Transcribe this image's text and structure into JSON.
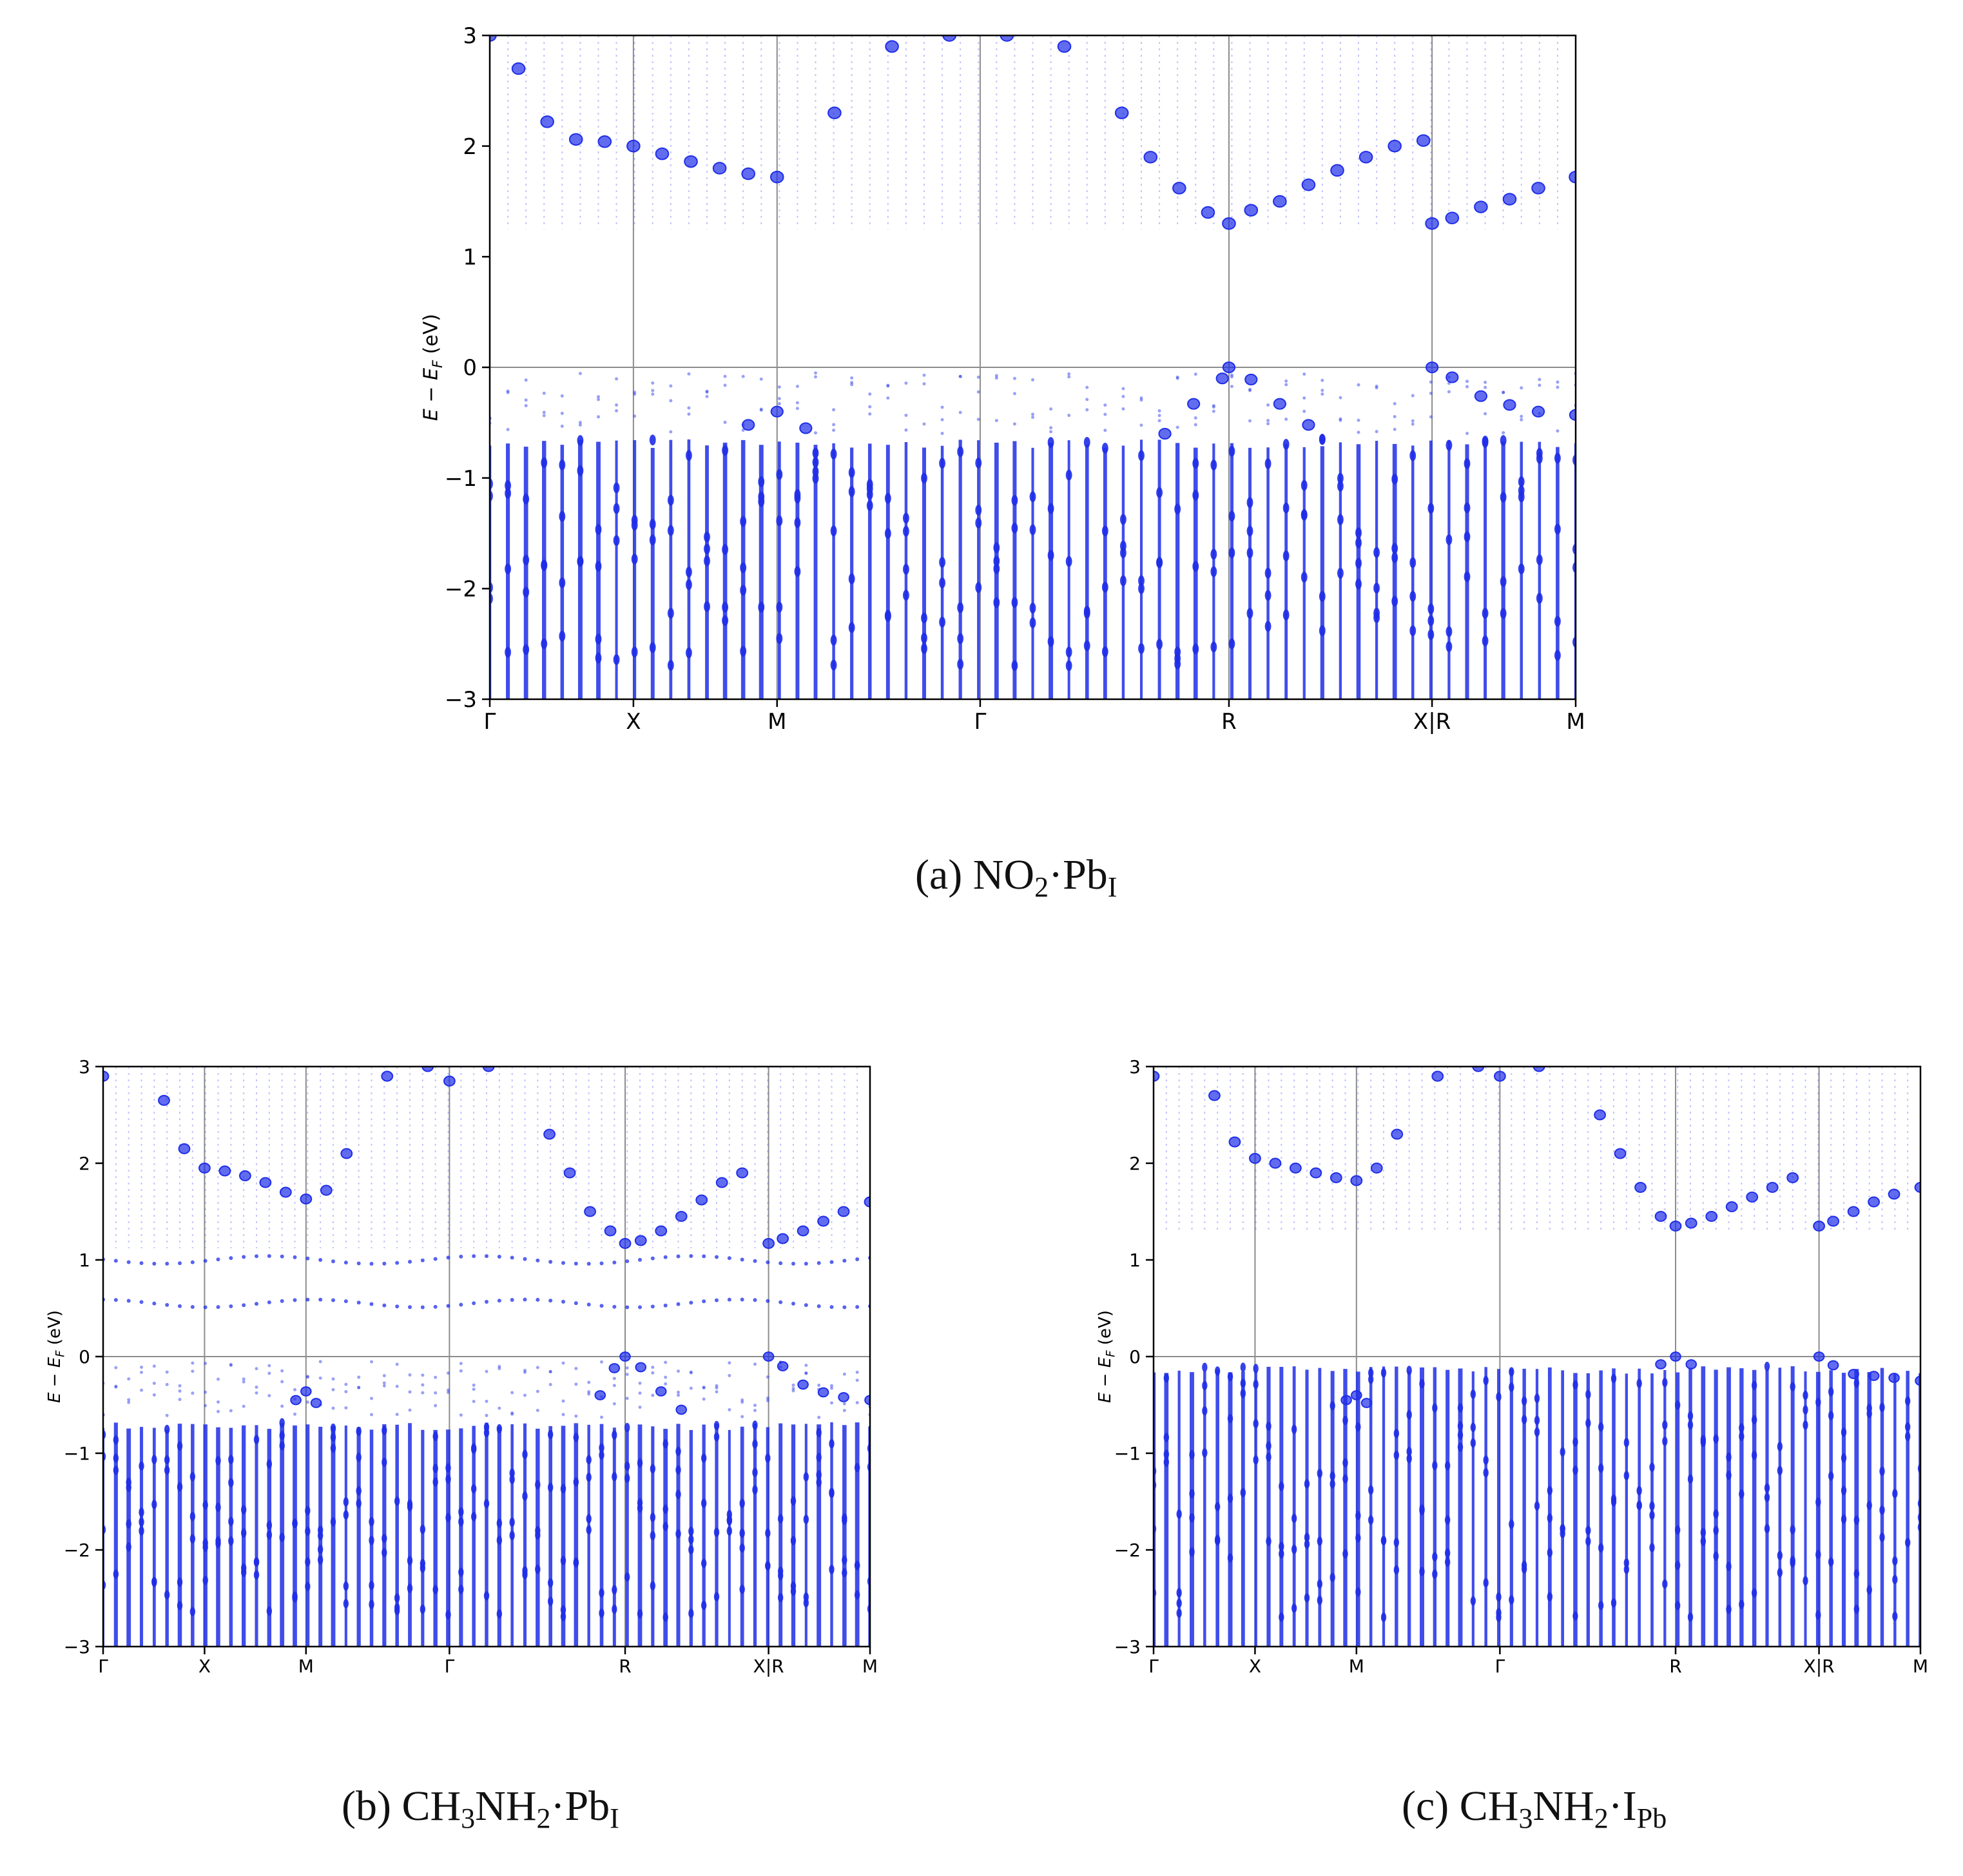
{
  "figure": {
    "captions": [
      {
        "label": "(a)",
        "parts": [
          [
            "NO",
            ""
          ],
          [
            "2",
            "sub"
          ],
          [
            "·Pb",
            ""
          ],
          [
            "I",
            "sub"
          ]
        ]
      },
      {
        "label": "(b)",
        "parts": [
          [
            "CH",
            ""
          ],
          [
            "3",
            "sub"
          ],
          [
            "NH",
            ""
          ],
          [
            "2",
            "sub"
          ],
          [
            "·Pb",
            ""
          ],
          [
            "I",
            "sub"
          ]
        ]
      },
      {
        "label": "(c)",
        "parts": [
          [
            "CH",
            ""
          ],
          [
            "3",
            "sub"
          ],
          [
            "NH",
            ""
          ],
          [
            "2",
            "sub"
          ],
          [
            "·I",
            ""
          ],
          [
            "Pb",
            "sub"
          ]
        ]
      }
    ]
  },
  "style": {
    "band_color": "#1f2ee8",
    "axis_color": "#000000",
    "gridline_color": "#8c8c8c"
  },
  "chart_data": [
    {
      "id": "a",
      "type": "scatter",
      "title": "",
      "xlabel": "",
      "ylabel": "E − E_F (eV)",
      "ylim": [
        -3,
        3
      ],
      "yticks": [
        -3,
        -2,
        -1,
        0,
        1,
        2,
        3
      ],
      "kpath_labels": [
        "Γ",
        "X",
        "M",
        "Γ",
        "R",
        "X|R",
        "M"
      ],
      "kpath_positions": [
        0,
        0.5,
        1.0,
        1.707,
        2.573,
        3.28,
        3.78
      ],
      "n_kpoints": 61,
      "cbm_eV": 1.3,
      "vbm_eV": 0.0,
      "defect_levels_eV": [],
      "conduction_band_k": [
        0,
        0.1,
        0.2,
        0.3,
        0.4,
        0.5,
        0.6,
        0.7,
        0.8,
        0.9,
        1.0,
        1.2,
        1.4,
        1.6,
        1.8,
        2.0,
        2.2,
        2.3,
        2.4,
        2.5,
        2.573,
        2.65,
        2.75,
        2.85,
        2.95,
        3.05,
        3.15,
        3.25,
        3.28,
        3.35,
        3.45,
        3.55,
        3.65,
        3.78
      ],
      "conduction_band_E": [
        3.0,
        2.7,
        2.22,
        2.06,
        2.04,
        2.0,
        1.93,
        1.86,
        1.8,
        1.75,
        1.72,
        2.3,
        2.9,
        3.0,
        3.0,
        2.9,
        2.3,
        1.9,
        1.62,
        1.4,
        1.3,
        1.42,
        1.5,
        1.65,
        1.78,
        1.9,
        2.0,
        2.05,
        1.3,
        1.35,
        1.45,
        1.52,
        1.62,
        1.72
      ],
      "valence_top_k": [
        0.9,
        1.0,
        1.1,
        2.35,
        2.45,
        2.55,
        2.573,
        2.65,
        2.75,
        2.85,
        3.28,
        3.35,
        3.45,
        3.55,
        3.65,
        3.78
      ],
      "valence_top_E": [
        -0.52,
        -0.4,
        -0.55,
        -0.6,
        -0.33,
        -0.1,
        0.0,
        -0.11,
        -0.33,
        -0.52,
        0.0,
        -0.09,
        -0.26,
        -0.34,
        -0.4,
        -0.43
      ],
      "valence_dense_top_eV": -0.65
    },
    {
      "id": "b",
      "type": "scatter",
      "title": "",
      "xlabel": "",
      "ylabel": "E − E_F (eV)",
      "ylim": [
        -3,
        3
      ],
      "yticks": [
        -3,
        -2,
        -1,
        0,
        1,
        2,
        3
      ],
      "kpath_labels": [
        "Γ",
        "X",
        "M",
        "Γ",
        "R",
        "X|R",
        "M"
      ],
      "kpath_positions": [
        0,
        0.5,
        1.0,
        1.707,
        2.573,
        3.28,
        3.78
      ],
      "n_kpoints": 61,
      "cbm_eV": 1.17,
      "vbm_eV": 0.0,
      "defect_levels_eV": [
        0.55,
        1.0
      ],
      "conduction_band_k": [
        0,
        0.3,
        0.4,
        0.5,
        0.6,
        0.7,
        0.8,
        0.9,
        1.0,
        1.1,
        1.2,
        1.4,
        1.6,
        1.707,
        1.9,
        2.2,
        2.3,
        2.4,
        2.5,
        2.573,
        2.65,
        2.75,
        2.85,
        2.95,
        3.05,
        3.15,
        3.28,
        3.35,
        3.45,
        3.55,
        3.65,
        3.78
      ],
      "conduction_band_E": [
        2.9,
        2.65,
        2.15,
        1.95,
        1.92,
        1.87,
        1.8,
        1.7,
        1.63,
        1.72,
        2.1,
        2.9,
        3.0,
        2.85,
        3.0,
        2.3,
        1.9,
        1.5,
        1.3,
        1.17,
        1.2,
        1.3,
        1.45,
        1.62,
        1.8,
        1.9,
        1.17,
        1.22,
        1.3,
        1.4,
        1.5,
        1.6
      ],
      "valence_top_k": [
        0.95,
        1.0,
        1.05,
        2.45,
        2.52,
        2.573,
        2.65,
        2.75,
        2.85,
        3.28,
        3.35,
        3.45,
        3.55,
        3.65,
        3.78
      ],
      "valence_top_E": [
        -0.45,
        -0.36,
        -0.48,
        -0.4,
        -0.12,
        0.0,
        -0.11,
        -0.36,
        -0.55,
        0.0,
        -0.1,
        -0.29,
        -0.37,
        -0.42,
        -0.45
      ],
      "valence_dense_top_eV": -0.68
    },
    {
      "id": "c",
      "type": "scatter",
      "title": "",
      "xlabel": "",
      "ylabel": "E − E_F (eV)",
      "ylim": [
        -3,
        3
      ],
      "yticks": [
        -3,
        -2,
        -1,
        0,
        1,
        2,
        3
      ],
      "kpath_labels": [
        "Γ",
        "X",
        "M",
        "Γ",
        "R",
        "X|R",
        "M"
      ],
      "kpath_positions": [
        0,
        0.5,
        1.0,
        1.707,
        2.573,
        3.28,
        3.78
      ],
      "n_kpoints": 61,
      "cbm_eV": 1.35,
      "vbm_eV": 0.0,
      "defect_levels_eV": [],
      "conduction_band_k": [
        0,
        0.3,
        0.4,
        0.5,
        0.6,
        0.7,
        0.8,
        0.9,
        1.0,
        1.1,
        1.2,
        1.4,
        1.6,
        1.707,
        1.9,
        2.2,
        2.3,
        2.4,
        2.5,
        2.573,
        2.65,
        2.75,
        2.85,
        2.95,
        3.05,
        3.15,
        3.28,
        3.35,
        3.45,
        3.55,
        3.65,
        3.78
      ],
      "conduction_band_E": [
        2.9,
        2.7,
        2.22,
        2.05,
        2.0,
        1.95,
        1.9,
        1.85,
        1.82,
        1.95,
        2.3,
        2.9,
        3.0,
        2.9,
        3.0,
        2.5,
        2.1,
        1.75,
        1.45,
        1.35,
        1.38,
        1.45,
        1.55,
        1.65,
        1.75,
        1.85,
        1.35,
        1.4,
        1.5,
        1.6,
        1.68,
        1.75
      ],
      "valence_top_k": [
        0.95,
        1.0,
        1.05,
        2.5,
        2.573,
        2.65,
        3.28,
        3.35,
        3.45,
        3.55,
        3.65,
        3.78
      ],
      "valence_top_E": [
        -0.45,
        -0.4,
        -0.48,
        -0.08,
        0.0,
        -0.08,
        0.0,
        -0.09,
        -0.18,
        -0.2,
        -0.22,
        -0.25
      ],
      "valence_dense_top_eV": -0.1
    }
  ]
}
